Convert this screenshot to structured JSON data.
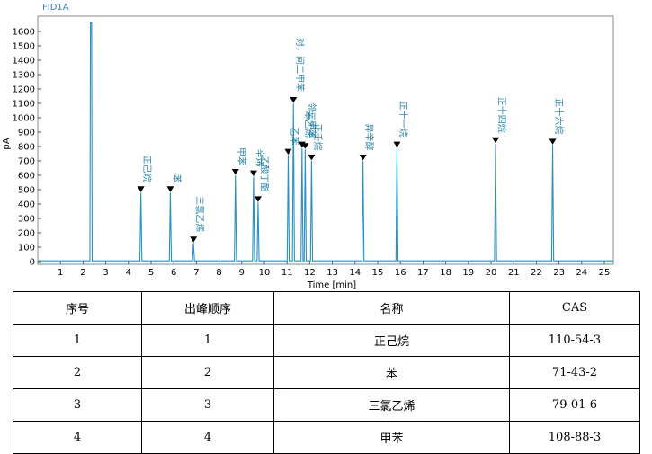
{
  "chart_data": {
    "type": "line",
    "detector": "FID1A",
    "xlabel": "Time [min]",
    "ylabel": "pA",
    "xlim": [
      0,
      25.4
    ],
    "ylim": [
      -30,
      1660
    ],
    "xticks": [
      1,
      2,
      3,
      4,
      5,
      6,
      7,
      8,
      9,
      10,
      11,
      12,
      13,
      14,
      15,
      16,
      17,
      18,
      19,
      20,
      21,
      22,
      23,
      24,
      25
    ],
    "yticks": [
      0,
      100,
      200,
      300,
      400,
      500,
      600,
      700,
      800,
      900,
      1000,
      1100,
      1200,
      1300,
      1400,
      1500,
      1600
    ],
    "baseline": 5,
    "solvent_peak": {
      "time": 2.35,
      "height": 1660
    },
    "peaks": [
      {
        "time": 4.55,
        "height": 480,
        "label": "正己烷"
      },
      {
        "time": 5.85,
        "height": 480,
        "label": "苯"
      },
      {
        "time": 6.87,
        "height": 130,
        "label": "三氯乙烯"
      },
      {
        "time": 8.72,
        "height": 600,
        "label": "甲苯"
      },
      {
        "time": 9.52,
        "height": 590,
        "label": "辛烯"
      },
      {
        "time": 9.72,
        "height": 410,
        "label": "乙酸丁酯"
      },
      {
        "time": 11.05,
        "height": 740,
        "label": "乙苯"
      },
      {
        "time": 11.28,
        "height": 1100,
        "label": "对，间二甲苯"
      },
      {
        "time": 11.66,
        "height": 790,
        "label": "苯乙烯"
      },
      {
        "time": 11.8,
        "height": 780,
        "label": "邻二甲苯"
      },
      {
        "time": 12.08,
        "height": 700,
        "label": "正壬烷"
      },
      {
        "time": 14.35,
        "height": 700,
        "label": "异辛醇"
      },
      {
        "time": 15.85,
        "height": 790,
        "label": "正十一烷"
      },
      {
        "time": 20.2,
        "height": 820,
        "label": "正十四烷"
      },
      {
        "time": 22.72,
        "height": 810,
        "label": "正十六烷"
      }
    ]
  },
  "table": {
    "headers": [
      "序号",
      "出峰顺序",
      "名称",
      "CAS"
    ],
    "rows": [
      [
        "1",
        "1",
        "正己烷",
        "110-54-3"
      ],
      [
        "2",
        "2",
        "苯",
        "71-43-2"
      ],
      [
        "3",
        "3",
        "三氯乙烯",
        "79-01-6"
      ],
      [
        "4",
        "4",
        "甲苯",
        "108-88-3"
      ]
    ]
  },
  "colors": {
    "trace": "#2b8fc0",
    "marker": "#000000",
    "label": "#2a86a8",
    "detector": "#3d7fc0"
  }
}
